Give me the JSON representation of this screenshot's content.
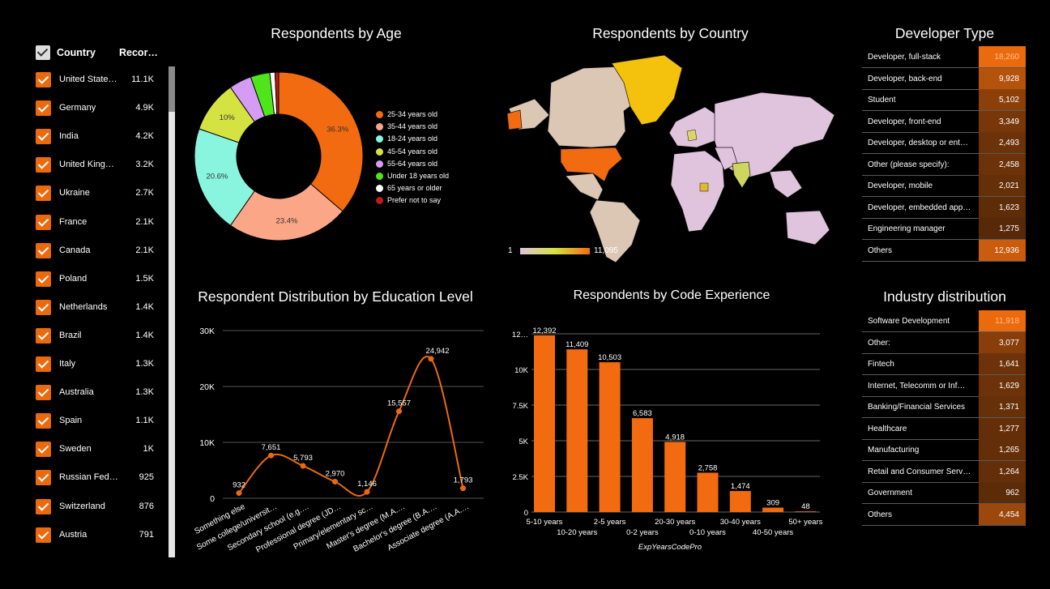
{
  "country_filter": {
    "header": {
      "col1": "Country",
      "col2": "Recor…"
    },
    "rows": [
      {
        "name": "United State…",
        "value": "11.1K"
      },
      {
        "name": "Germany",
        "value": "4.9K"
      },
      {
        "name": "India",
        "value": "4.2K"
      },
      {
        "name": "United King…",
        "value": "3.2K"
      },
      {
        "name": "Ukraine",
        "value": "2.7K"
      },
      {
        "name": "France",
        "value": "2.1K"
      },
      {
        "name": "Canada",
        "value": "2.1K"
      },
      {
        "name": "Poland",
        "value": "1.5K"
      },
      {
        "name": "Netherlands",
        "value": "1.4K"
      },
      {
        "name": "Brazil",
        "value": "1.4K"
      },
      {
        "name": "Italy",
        "value": "1.3K"
      },
      {
        "name": "Australia",
        "value": "1.3K"
      },
      {
        "name": "Spain",
        "value": "1.1K"
      },
      {
        "name": "Sweden",
        "value": "1K"
      },
      {
        "name": "Russian Fed…",
        "value": "925"
      },
      {
        "name": "Switzerland",
        "value": "876"
      },
      {
        "name": "Austria",
        "value": "791"
      }
    ]
  },
  "map": {
    "title": "Respondents by Country",
    "scale_min": "1",
    "scale_max": "11,095"
  },
  "colors": {
    "accent": "#ec6a0e",
    "background": "#000000"
  },
  "chart_data": [
    {
      "type": "pie",
      "title": "Respondents by Age",
      "slices": [
        {
          "label": "25-34 years old",
          "value": 36.3,
          "display": "36.3%",
          "color": "#f26b10"
        },
        {
          "label": "35-44 years old",
          "value": 23.4,
          "display": "23.4%",
          "color": "#fba787"
        },
        {
          "label": "18-24 years old",
          "value": 20.6,
          "display": "20.6%",
          "color": "#8af5de"
        },
        {
          "label": "45-54 years old",
          "value": 10.0,
          "display": "10%",
          "color": "#d5e342"
        },
        {
          "label": "55-64 years old",
          "value": 4.3,
          "display": "",
          "color": "#d69cf5"
        },
        {
          "label": "Under 18 years old",
          "value": 3.7,
          "display": "",
          "color": "#4ee61a"
        },
        {
          "label": "65 years or older",
          "value": 1.0,
          "display": "",
          "color": "#ffffff"
        },
        {
          "label": "Prefer not to say",
          "value": 0.7,
          "display": "",
          "color": "#bf1a1a"
        }
      ]
    },
    {
      "type": "line",
      "title": "Respondent Distribution by Education Level",
      "categories": [
        "Something else",
        "Some college/universit…",
        "Secondary school (e.g.…",
        "Professional degree (JD…",
        "Primary/elementary sc…",
        "Master's degree (M.A.…",
        "Bachelor's degree (B.A.…",
        "Associate degree (A.A.…"
      ],
      "values": [
        932,
        7651,
        5793,
        2970,
        1146,
        15557,
        24942,
        1793
      ],
      "value_labels": [
        "932",
        "7,651",
        "5,793",
        "2,970",
        "1,146",
        "15,557",
        "24,942",
        "1,793"
      ],
      "yticks": [
        "0",
        "10K",
        "20K",
        "30K"
      ],
      "ylim": [
        0,
        30000
      ],
      "grid": true
    },
    {
      "type": "bar",
      "title": "Respondents by Code Experience",
      "xlabel": "ExpYearsCodePro",
      "categories": [
        "5-10 years",
        "10-20 years",
        "2-5 years",
        "0-2 years",
        "20-30 years",
        "0-10 years",
        "30-40 years",
        "40-50 years",
        "50+ years"
      ],
      "values": [
        12392,
        11409,
        10503,
        6583,
        4918,
        2758,
        1474,
        309,
        48
      ],
      "value_labels": [
        "12,392",
        "11,409",
        "10,503",
        "6,583",
        "4,918",
        "2,758",
        "1,474",
        "309",
        "48"
      ],
      "yticks": [
        "0",
        "2.5K",
        "5K",
        "7.5K",
        "10K",
        "12…"
      ],
      "ylim": [
        0,
        12500
      ],
      "grid": true
    },
    {
      "type": "table",
      "title": "Developer Type",
      "rows": [
        {
          "label": "Developer, full-stack",
          "value": 18260,
          "display": "18,260"
        },
        {
          "label": "Developer, back-end",
          "value": 9928,
          "display": "9,928"
        },
        {
          "label": "Student",
          "value": 5102,
          "display": "5,102"
        },
        {
          "label": "Developer, front-end",
          "value": 3349,
          "display": "3,349"
        },
        {
          "label": "Developer, desktop or ent…",
          "value": 2493,
          "display": "2,493"
        },
        {
          "label": "Other (please specify):",
          "value": 2458,
          "display": "2,458"
        },
        {
          "label": "Developer, mobile",
          "value": 2021,
          "display": "2,021"
        },
        {
          "label": "Developer, embedded app…",
          "value": 1623,
          "display": "1,623"
        },
        {
          "label": "Engineering manager",
          "value": 1275,
          "display": "1,275"
        },
        {
          "label": "Others",
          "value": 12936,
          "display": "12,936"
        }
      ]
    },
    {
      "type": "table",
      "title": "Industry distribution",
      "rows": [
        {
          "label": "Software Development",
          "value": 11918,
          "display": "11,918"
        },
        {
          "label": "Other:",
          "value": 3077,
          "display": "3,077"
        },
        {
          "label": "Fintech",
          "value": 1641,
          "display": "1,641"
        },
        {
          "label": "Internet, Telecomm or Inf…",
          "value": 1629,
          "display": "1,629"
        },
        {
          "label": "Banking/Financial Services",
          "value": 1371,
          "display": "1,371"
        },
        {
          "label": "Healthcare",
          "value": 1277,
          "display": "1,277"
        },
        {
          "label": "Manufacturing",
          "value": 1265,
          "display": "1,265"
        },
        {
          "label": "Retail and Consumer Serv…",
          "value": 1264,
          "display": "1,264"
        },
        {
          "label": "Government",
          "value": 962,
          "display": "962"
        },
        {
          "label": "Others",
          "value": 4454,
          "display": "4,454"
        }
      ]
    }
  ]
}
